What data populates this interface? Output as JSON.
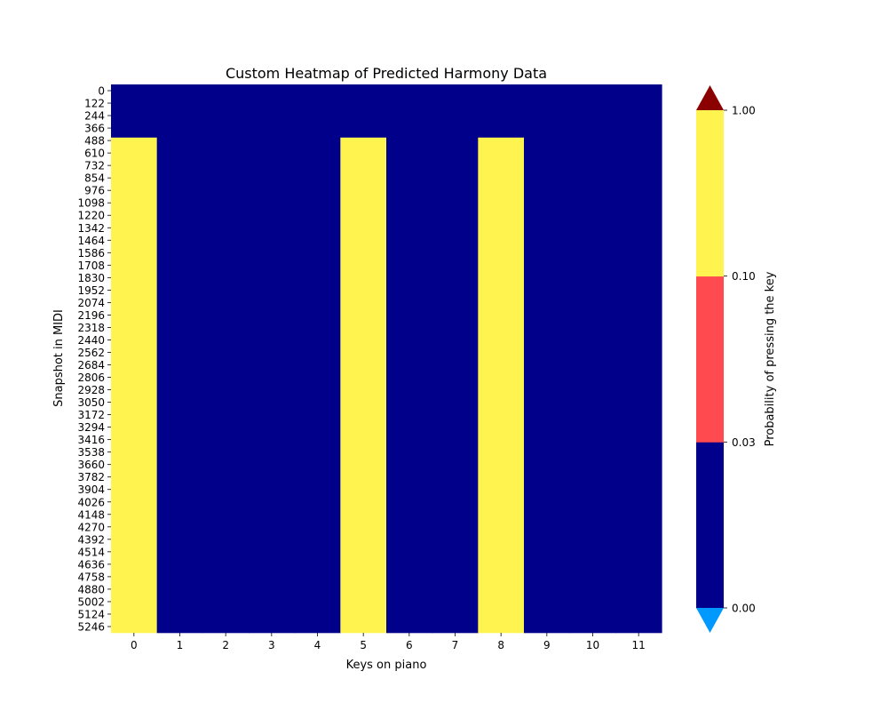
{
  "chart_data": {
    "type": "heatmap",
    "title": "Custom Heatmap of Predicted Harmony Data",
    "xlabel": "Keys on piano",
    "ylabel": "Snapshot in MIDI",
    "x_categories": [
      "0",
      "1",
      "2",
      "3",
      "4",
      "5",
      "6",
      "7",
      "8",
      "9",
      "10",
      "11"
    ],
    "y_ticks": [
      0,
      122,
      244,
      366,
      488,
      610,
      732,
      854,
      976,
      1098,
      1220,
      1342,
      1464,
      1586,
      1708,
      1830,
      1952,
      2074,
      2196,
      2318,
      2440,
      2562,
      2684,
      2806,
      2928,
      3050,
      3172,
      3294,
      3416,
      3538,
      3660,
      3782,
      3904,
      4026,
      4148,
      4270,
      4392,
      4514,
      4636,
      4758,
      4880,
      5002,
      5124,
      5246
    ],
    "y_range": [
      0,
      5368
    ],
    "cells": [
      {
        "key": 0,
        "row_start": 0,
        "row_end": 520,
        "value_class": "0.00-0.03"
      },
      {
        "key": 0,
        "row_start": 520,
        "row_end": 5368,
        "value_class": "0.10-1.00"
      },
      {
        "key": 1,
        "row_start": 0,
        "row_end": 5368,
        "value_class": "0.00-0.03"
      },
      {
        "key": 2,
        "row_start": 0,
        "row_end": 5368,
        "value_class": "0.00-0.03"
      },
      {
        "key": 3,
        "row_start": 0,
        "row_end": 5368,
        "value_class": "0.00-0.03"
      },
      {
        "key": 4,
        "row_start": 0,
        "row_end": 5368,
        "value_class": "0.00-0.03"
      },
      {
        "key": 5,
        "row_start": 0,
        "row_end": 520,
        "value_class": "0.00-0.03"
      },
      {
        "key": 5,
        "row_start": 520,
        "row_end": 5368,
        "value_class": "0.10-1.00"
      },
      {
        "key": 6,
        "row_start": 0,
        "row_end": 5368,
        "value_class": "0.00-0.03"
      },
      {
        "key": 7,
        "row_start": 0,
        "row_end": 5368,
        "value_class": "0.00-0.03"
      },
      {
        "key": 8,
        "row_start": 0,
        "row_end": 520,
        "value_class": "0.00-0.03"
      },
      {
        "key": 8,
        "row_start": 520,
        "row_end": 5368,
        "value_class": "0.10-1.00"
      },
      {
        "key": 9,
        "row_start": 0,
        "row_end": 5368,
        "value_class": "0.00-0.03"
      },
      {
        "key": 10,
        "row_start": 0,
        "row_end": 5368,
        "value_class": "0.00-0.03"
      },
      {
        "key": 11,
        "row_start": 0,
        "row_end": 5368,
        "value_class": "0.00-0.03"
      }
    ],
    "colorbar": {
      "label": "Probability of pressing the key",
      "ticks": [
        "0.00",
        "0.03",
        "0.10",
        "1.00"
      ],
      "bins": [
        {
          "range": "0.00-0.03",
          "color": "#00008b"
        },
        {
          "range": "0.03-0.10",
          "color": "#ff4a4f"
        },
        {
          "range": "0.10-1.00",
          "color": "#fff44f"
        }
      ],
      "under_color": "#0099ff",
      "over_color": "#8b0000"
    }
  }
}
